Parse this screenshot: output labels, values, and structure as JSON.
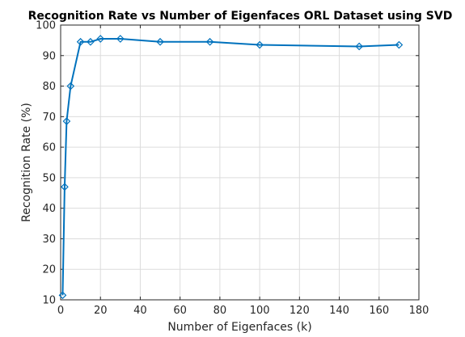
{
  "chart_data": {
    "type": "line",
    "title": "Recognition Rate vs Number of Eigenfaces ORL Dataset using SVD",
    "xlabel": "Number of Eigenfaces (k)",
    "ylabel": "Recognition Rate (%)",
    "xlim": [
      0,
      180
    ],
    "ylim": [
      10,
      100
    ],
    "xticks": [
      0,
      20,
      40,
      60,
      80,
      100,
      120,
      140,
      160,
      180
    ],
    "yticks": [
      10,
      20,
      30,
      40,
      50,
      60,
      70,
      80,
      90,
      100
    ],
    "grid": true,
    "series_color": "#0072BD",
    "marker": "diamond",
    "series": [
      {
        "x": [
          1,
          2,
          3,
          5,
          10,
          15,
          20,
          30,
          50,
          75,
          100,
          150,
          170
        ],
        "y": [
          11.5,
          47,
          68.5,
          80,
          94.5,
          94.5,
          95.5,
          95.5,
          94.5,
          94.5,
          93.5,
          93,
          93.5
        ]
      }
    ]
  }
}
